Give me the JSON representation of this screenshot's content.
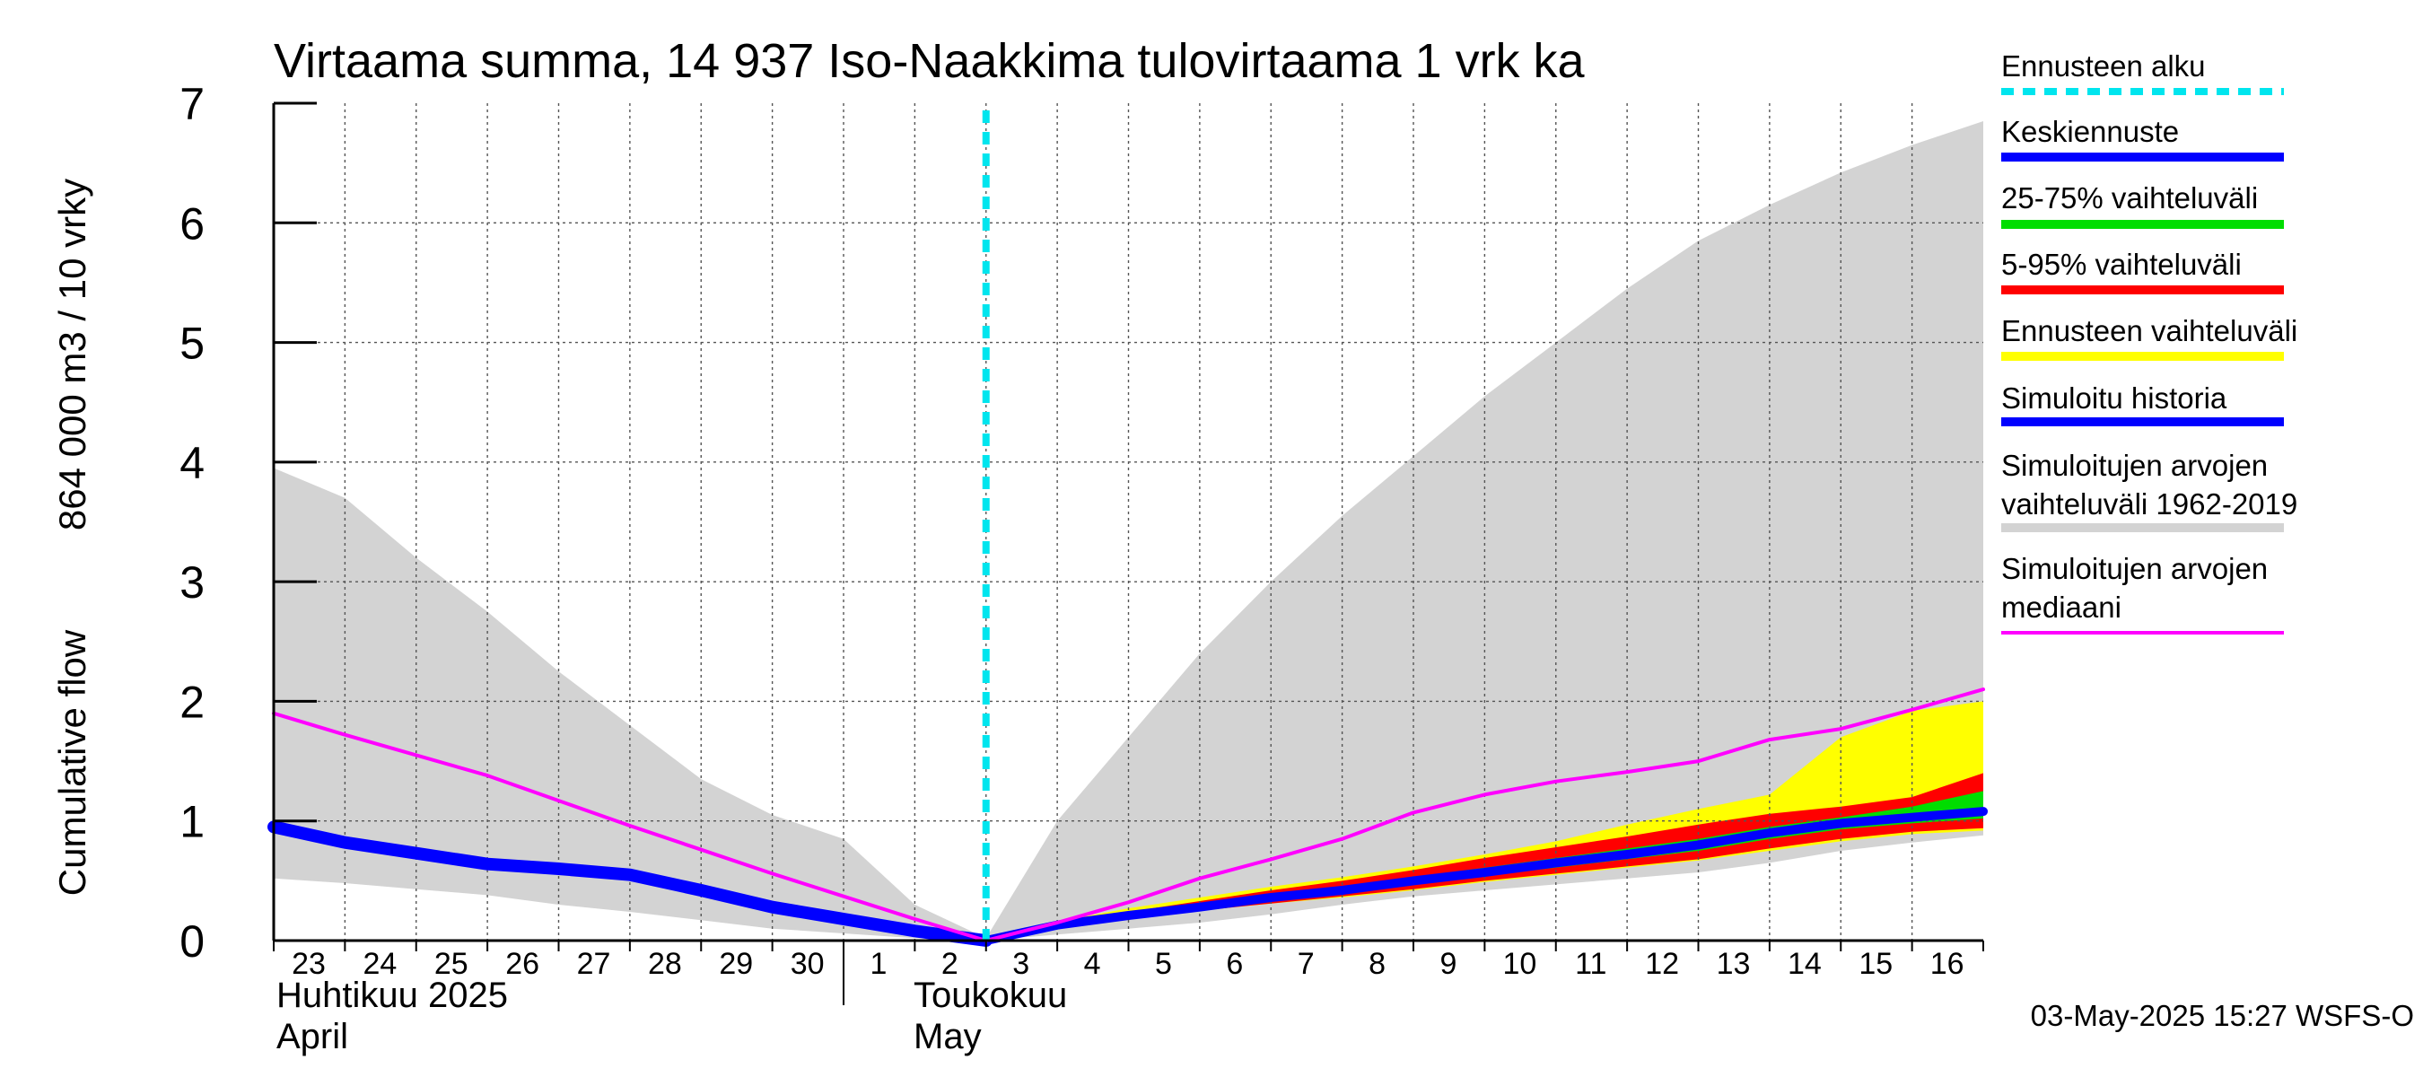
{
  "chart_data": {
    "type": "area",
    "title": "Virtaama summa, 14 937 Iso-Naakkima tulovirtaama 1 vrk ka",
    "ylabel_line1": "Cumulative flow",
    "ylabel_line2": "864 000 m3 / 10 vrky",
    "ylim": [
      0,
      7
    ],
    "yticks": [
      "0",
      "1",
      "2",
      "3",
      "4",
      "5",
      "6",
      "7"
    ],
    "x_index_range": [
      0,
      24
    ],
    "x_ticks": [
      {
        "x": 0,
        "label": "23"
      },
      {
        "x": 1,
        "label": "24"
      },
      {
        "x": 2,
        "label": "25"
      },
      {
        "x": 3,
        "label": "26"
      },
      {
        "x": 4,
        "label": "27"
      },
      {
        "x": 5,
        "label": "28"
      },
      {
        "x": 6,
        "label": "29"
      },
      {
        "x": 7,
        "label": "30"
      },
      {
        "x": 8,
        "label": "1"
      },
      {
        "x": 9,
        "label": "2"
      },
      {
        "x": 10,
        "label": "3"
      },
      {
        "x": 11,
        "label": "4"
      },
      {
        "x": 12,
        "label": "5"
      },
      {
        "x": 13,
        "label": "6"
      },
      {
        "x": 14,
        "label": "7"
      },
      {
        "x": 15,
        "label": "8"
      },
      {
        "x": 16,
        "label": "9"
      },
      {
        "x": 17,
        "label": "10"
      },
      {
        "x": 18,
        "label": "11"
      },
      {
        "x": 19,
        "label": "12"
      },
      {
        "x": 20,
        "label": "13"
      },
      {
        "x": 21,
        "label": "14"
      },
      {
        "x": 22,
        "label": "15"
      },
      {
        "x": 23,
        "label": "16"
      }
    ],
    "month_labels": {
      "april_fi": "Huhtikuu  2025",
      "april_en": "April",
      "may_fi": "Toukokuu",
      "may_en": "May"
    },
    "forecast_start_x": 10,
    "series": [
      {
        "name": "Simuloitujen arvojen vaihteluväli 1962-2019",
        "kind": "band",
        "color": "#d3d3d3",
        "x": [
          0,
          1,
          2,
          3,
          4,
          5,
          6,
          7,
          8,
          9,
          10,
          11,
          12,
          13,
          14,
          15,
          16,
          17,
          18,
          19,
          20,
          21,
          22,
          23,
          24
        ],
        "upper": [
          3.95,
          3.7,
          3.2,
          2.75,
          2.25,
          1.8,
          1.35,
          1.05,
          0.85,
          0.3,
          0.02,
          1.0,
          1.7,
          2.4,
          3.0,
          3.55,
          4.05,
          4.55,
          5.0,
          5.45,
          5.85,
          6.15,
          6.42,
          6.65,
          6.85
        ],
        "lower": [
          0.52,
          0.48,
          0.43,
          0.38,
          0.3,
          0.24,
          0.17,
          0.1,
          0.06,
          0.02,
          0.0,
          0.05,
          0.1,
          0.15,
          0.22,
          0.3,
          0.37,
          0.42,
          0.47,
          0.52,
          0.57,
          0.65,
          0.75,
          0.82,
          0.88
        ]
      },
      {
        "name": "Ennusteen vaihteluväli",
        "kind": "band",
        "color": "#ffff00",
        "x": [
          10,
          11,
          12,
          13,
          14,
          15,
          16,
          17,
          18,
          19,
          20,
          21,
          22,
          23,
          24
        ],
        "upper": [
          0.0,
          0.16,
          0.27,
          0.36,
          0.45,
          0.53,
          0.62,
          0.72,
          0.83,
          0.97,
          1.1,
          1.22,
          1.7,
          1.92,
          2.0
        ],
        "lower": [
          0.0,
          0.12,
          0.19,
          0.25,
          0.31,
          0.36,
          0.42,
          0.49,
          0.55,
          0.61,
          0.67,
          0.75,
          0.83,
          0.89,
          0.92
        ]
      },
      {
        "name": "5-95% vaihteluväli",
        "kind": "band",
        "color": "#ff0000",
        "x": [
          10,
          11,
          12,
          13,
          14,
          15,
          16,
          17,
          18,
          19,
          20,
          21,
          22,
          23,
          24
        ],
        "upper": [
          0.0,
          0.15,
          0.24,
          0.33,
          0.42,
          0.5,
          0.59,
          0.69,
          0.78,
          0.87,
          0.97,
          1.06,
          1.12,
          1.2,
          1.4
        ],
        "lower": [
          0.0,
          0.12,
          0.19,
          0.25,
          0.31,
          0.37,
          0.43,
          0.5,
          0.56,
          0.62,
          0.68,
          0.77,
          0.85,
          0.91,
          0.94
        ]
      },
      {
        "name": "25-75% vaihteluväli",
        "kind": "band",
        "color": "#00dd00",
        "x": [
          10,
          11,
          12,
          13,
          14,
          15,
          16,
          17,
          18,
          19,
          20,
          21,
          22,
          23,
          24
        ],
        "upper": [
          0.0,
          0.14,
          0.22,
          0.3,
          0.38,
          0.45,
          0.53,
          0.61,
          0.69,
          0.77,
          0.85,
          0.95,
          1.03,
          1.12,
          1.25
        ],
        "lower": [
          0.0,
          0.13,
          0.2,
          0.27,
          0.34,
          0.4,
          0.47,
          0.54,
          0.61,
          0.68,
          0.75,
          0.85,
          0.93,
          0.98,
          1.02
        ]
      },
      {
        "name": "Keskiennuste",
        "kind": "line",
        "color": "#0000ff",
        "width": 10,
        "x": [
          10,
          11,
          12,
          13,
          14,
          15,
          16,
          17,
          18,
          19,
          20,
          21,
          22,
          23,
          24
        ],
        "values": [
          0.0,
          0.13,
          0.21,
          0.28,
          0.36,
          0.42,
          0.5,
          0.57,
          0.65,
          0.72,
          0.8,
          0.9,
          0.98,
          1.03,
          1.08
        ]
      },
      {
        "name": "Simuloitu historia",
        "kind": "line",
        "color": "#0000ff",
        "width": 14,
        "x": [
          0,
          1,
          2,
          3,
          4,
          5,
          6,
          7,
          8,
          9,
          10
        ],
        "values": [
          0.95,
          0.82,
          0.73,
          0.64,
          0.6,
          0.55,
          0.42,
          0.28,
          0.18,
          0.08,
          0.0
        ]
      },
      {
        "name": "Simuloitujen arvojen mediaani",
        "kind": "line",
        "color": "#ff00ff",
        "width": 4,
        "x": [
          0,
          1,
          2,
          3,
          4,
          5,
          6,
          7,
          8,
          9,
          10,
          11,
          12,
          13,
          14,
          15,
          16,
          17,
          18,
          19,
          20,
          21,
          22,
          23,
          24
        ],
        "values": [
          1.9,
          1.72,
          1.55,
          1.38,
          1.17,
          0.96,
          0.76,
          0.56,
          0.37,
          0.18,
          0.0,
          0.15,
          0.32,
          0.52,
          0.68,
          0.85,
          1.07,
          1.22,
          1.33,
          1.41,
          1.5,
          1.68,
          1.77,
          1.93,
          2.1
        ]
      }
    ],
    "legend": [
      {
        "label": "Ennusteen alku",
        "color": "#00e5ee",
        "style": "dashed"
      },
      {
        "label": "Keskiennuste",
        "color": "#0000ff",
        "style": "solid"
      },
      {
        "label": "25-75% vaihteluväli",
        "color": "#00dd00",
        "style": "solid"
      },
      {
        "label": "5-95% vaihteluväli",
        "color": "#ff0000",
        "style": "solid"
      },
      {
        "label": "Ennusteen vaihteluväli",
        "color": "#ffff00",
        "style": "solid"
      },
      {
        "label": "Simuloitu historia",
        "color": "#0000ff",
        "style": "solid"
      },
      {
        "label": "Simuloitujen arvojen vaihteluväli 1962-2019",
        "lines": [
          "Simuloitujen arvojen",
          "vaihteluväli 1962-2019"
        ],
        "color": "#d3d3d3",
        "style": "solid"
      },
      {
        "label": "Simuloitujen arvojen mediaani",
        "lines": [
          "Simuloitujen arvojen",
          "mediaani"
        ],
        "color": "#ff00ff",
        "style": "thin"
      }
    ],
    "legend_position": "right",
    "grid": true
  },
  "timestamp": "03-May-2025 15:27 WSFS-O"
}
